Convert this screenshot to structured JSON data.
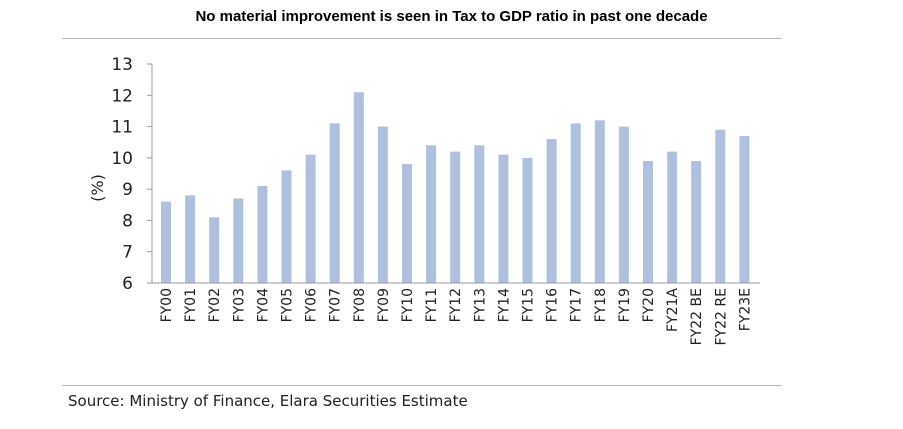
{
  "chart_data": {
    "type": "bar",
    "title": "No material improvement is seen in Tax to GDP ratio in past one decade",
    "ylabel": "(%)",
    "xlabel": "",
    "ylim": [
      6,
      13
    ],
    "yticks": [
      6,
      7,
      8,
      9,
      10,
      11,
      12,
      13
    ],
    "categories": [
      "FY00",
      "FY01",
      "FY02",
      "FY03",
      "FY04",
      "FY05",
      "FY06",
      "FY07",
      "FY08",
      "FY09",
      "FY10",
      "FY11",
      "FY12",
      "FY13",
      "FY14",
      "FY15",
      "FY16",
      "FY17",
      "FY18",
      "FY19",
      "FY20",
      "FY21A",
      "FY22 BE",
      "FY22 RE",
      "FY23E"
    ],
    "values": [
      8.6,
      8.8,
      8.1,
      8.7,
      9.1,
      9.6,
      10.1,
      11.1,
      12.1,
      11.0,
      9.8,
      10.4,
      10.2,
      10.4,
      10.1,
      10.0,
      10.6,
      11.1,
      11.2,
      11.0,
      9.9,
      10.2,
      9.9,
      10.9,
      10.7
    ],
    "bar_color": "#aec0de",
    "grid": false,
    "legend": "none"
  },
  "source": "Source: Ministry of Finance, Elara Securities Estimate"
}
